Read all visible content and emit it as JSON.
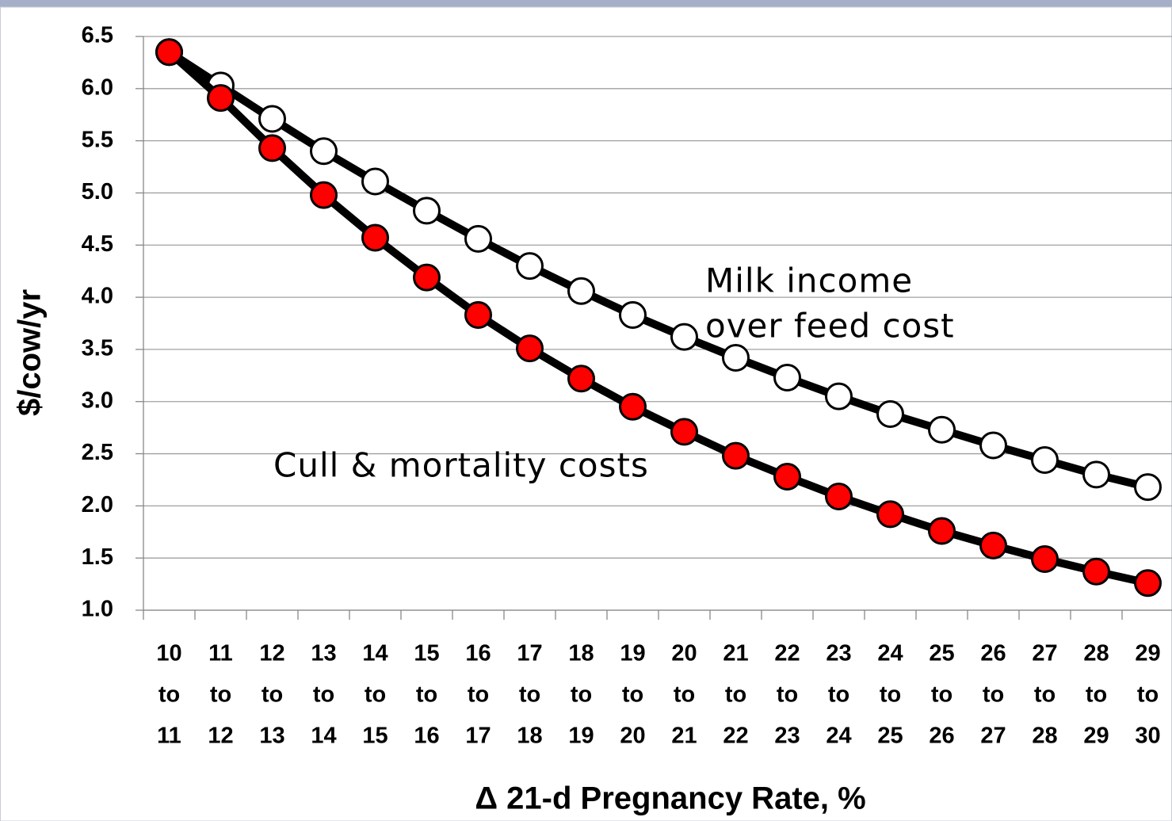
{
  "chart_data": {
    "type": "line",
    "y_label": "$/cow/yr",
    "x_label": "Δ 21-d Pregnancy Rate, %",
    "categories": [
      [
        "10",
        "to",
        "11"
      ],
      [
        "11",
        "to",
        "12"
      ],
      [
        "12",
        "to",
        "13"
      ],
      [
        "13",
        "to",
        "14"
      ],
      [
        "14",
        "to",
        "15"
      ],
      [
        "15",
        "to",
        "16"
      ],
      [
        "16",
        "to",
        "17"
      ],
      [
        "17",
        "to",
        "18"
      ],
      [
        "18",
        "to",
        "19"
      ],
      [
        "19",
        "to",
        "20"
      ],
      [
        "20",
        "to",
        "21"
      ],
      [
        "21",
        "to",
        "22"
      ],
      [
        "22",
        "to",
        "23"
      ],
      [
        "23",
        "to",
        "24"
      ],
      [
        "24",
        "to",
        "25"
      ],
      [
        "25",
        "to",
        "26"
      ],
      [
        "26",
        "to",
        "27"
      ],
      [
        "27",
        "to",
        "28"
      ],
      [
        "28",
        "to",
        "29"
      ],
      [
        "29",
        "to",
        "30"
      ]
    ],
    "series": [
      {
        "color": "#ffffff",
        "values": [
          6.35,
          6.03,
          5.71,
          5.4,
          5.11,
          4.83,
          4.56,
          4.3,
          4.06,
          3.83,
          3.62,
          3.42,
          3.23,
          3.05,
          2.88,
          2.73,
          2.58,
          2.44,
          2.3,
          2.18
        ]
      },
      {
        "color": "#ff0000",
        "values": [
          6.35,
          5.91,
          5.43,
          4.98,
          4.57,
          4.19,
          3.83,
          3.51,
          3.22,
          2.95,
          2.71,
          2.48,
          2.28,
          2.09,
          1.92,
          1.76,
          1.62,
          1.49,
          1.37,
          1.26
        ]
      }
    ],
    "annotations": [
      [
        "Milk income",
        "over feed cost"
      ],
      [
        "Cull & mortality costs"
      ]
    ],
    "ylim": [
      1.0,
      6.5
    ],
    "yticks": [
      {
        "value": 1,
        "label": "1.0"
      },
      1.5,
      {
        "value": 2,
        "label": "2.0"
      },
      2.5,
      {
        "value": 3,
        "label": "3.0"
      },
      3.5,
      {
        "value": 4,
        "label": "4.0"
      },
      4.5,
      {
        "value": 5,
        "label": "5.0"
      },
      5.5,
      {
        "value": 6,
        "label": "6.0"
      },
      6.5
    ],
    "grid": true
  }
}
